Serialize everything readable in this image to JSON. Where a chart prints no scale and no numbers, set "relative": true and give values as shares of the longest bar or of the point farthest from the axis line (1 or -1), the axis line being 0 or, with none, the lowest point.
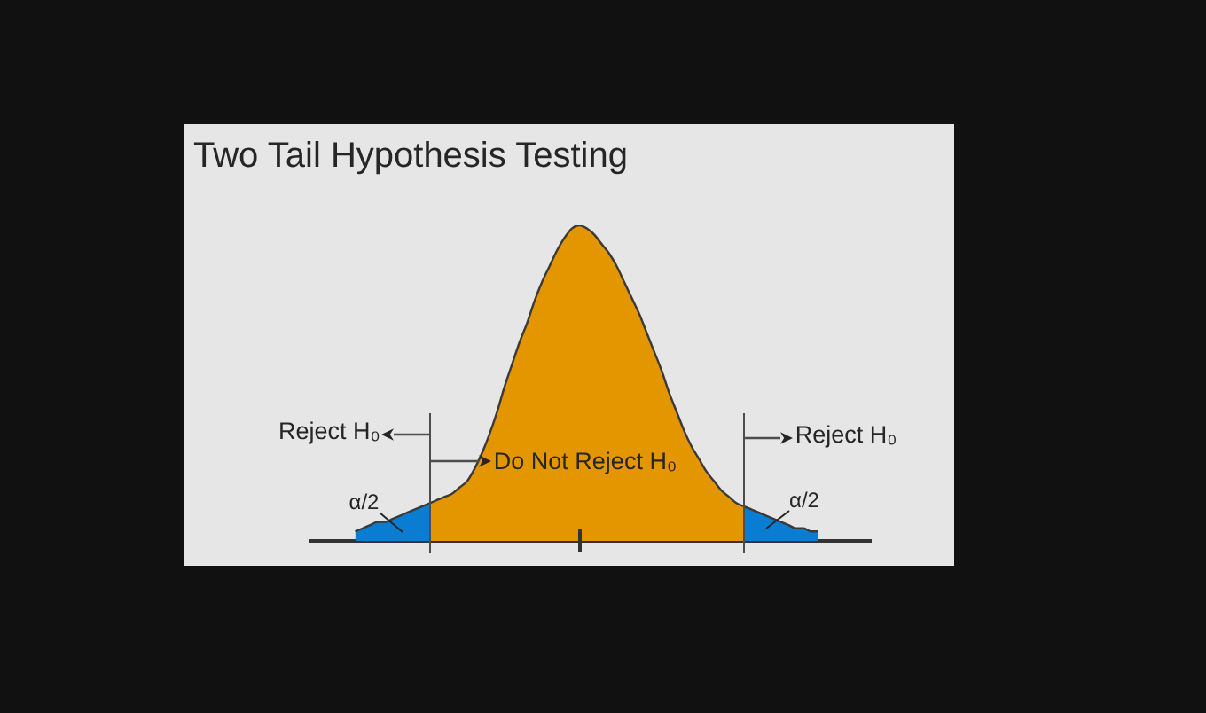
{
  "chart_data": {
    "type": "area",
    "title": "Two Tail Hypothesis Testing",
    "relative": true,
    "categories": [
      null,
      null,
      null,
      null,
      null,
      null,
      null,
      null,
      null,
      null,
      null,
      null,
      null,
      null,
      null,
      null,
      null,
      null,
      null,
      null,
      null,
      null,
      null,
      null,
      null,
      null,
      null,
      null,
      null,
      null,
      null,
      null,
      null,
      null,
      null,
      null,
      null,
      null,
      null,
      null,
      null,
      null,
      null,
      null,
      null,
      null,
      null,
      null,
      null,
      null,
      null,
      null,
      null,
      null,
      null,
      null,
      null,
      null,
      null,
      null,
      null,
      null,
      null,
      null,
      null,
      null,
      null,
      null,
      null,
      null,
      null,
      null,
      null,
      null,
      null,
      null
    ],
    "series": [
      {
        "color": "#0a7dd2",
        "values": [
          null,
          null,
          null,
          null,
          null,
          null,
          0.03,
          0.04,
          0.05,
          0.06,
          0.06,
          0.07,
          0.08,
          0.09,
          0.1,
          0.11,
          0.12,
          null,
          null,
          null,
          null,
          null,
          null,
          null,
          null,
          null,
          null,
          null,
          null,
          null,
          null,
          null,
          null,
          null,
          null,
          null,
          null,
          null,
          null,
          null,
          null,
          null,
          null,
          null,
          null,
          null,
          null,
          null,
          null,
          null,
          null,
          null,
          null,
          null,
          null,
          null,
          null,
          null,
          null,
          null,
          null,
          null,
          null,
          null,
          null,
          null,
          null,
          null,
          null,
          null,
          null,
          null,
          null,
          null,
          null,
          null
        ]
      },
      {
        "color": "#e39600",
        "values": [
          null,
          null,
          null,
          null,
          null,
          null,
          null,
          null,
          null,
          null,
          null,
          null,
          null,
          null,
          null,
          null,
          0.12,
          0.13,
          0.14,
          0.15,
          0.17,
          0.19,
          0.23,
          0.28,
          0.34,
          0.41,
          0.49,
          0.56,
          0.63,
          0.69,
          0.76,
          0.82,
          0.87,
          0.92,
          0.96,
          0.99,
          1,
          0.99,
          0.97,
          0.94,
          0.91,
          0.87,
          0.82,
          0.77,
          0.72,
          0.66,
          0.6,
          0.54,
          0.47,
          0.41,
          0.35,
          0.3,
          0.26,
          0.22,
          0.19,
          0.16,
          0.14,
          0.12,
          0.11,
          null,
          null,
          null,
          null,
          null,
          null,
          null,
          null,
          null,
          null,
          null,
          null,
          null,
          null,
          null,
          null,
          null
        ]
      },
      {
        "color": "#0a7dd2",
        "values": [
          null,
          null,
          null,
          null,
          null,
          null,
          null,
          null,
          null,
          null,
          null,
          null,
          null,
          null,
          null,
          null,
          null,
          null,
          null,
          null,
          null,
          null,
          null,
          null,
          null,
          null,
          null,
          null,
          null,
          null,
          null,
          null,
          null,
          null,
          null,
          null,
          null,
          null,
          null,
          null,
          null,
          null,
          null,
          null,
          null,
          null,
          null,
          null,
          null,
          null,
          null,
          null,
          null,
          null,
          null,
          null,
          null,
          null,
          0.11,
          0.1,
          0.09,
          0.08,
          0.07,
          0.06,
          0.05,
          0.04,
          0.04,
          0.03,
          0.03,
          null,
          null,
          null,
          null,
          null,
          null,
          null
        ]
      }
    ],
    "annotations": [
      "Reject H₀",
      "Do Not Reject H₀",
      "Reject H₀",
      "α/2",
      "α/2"
    ]
  }
}
